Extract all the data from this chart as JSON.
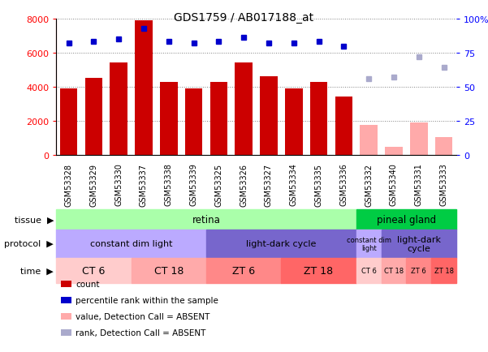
{
  "title": "GDS1759 / AB017188_at",
  "samples": [
    "GSM53328",
    "GSM53329",
    "GSM53330",
    "GSM53337",
    "GSM53338",
    "GSM53339",
    "GSM53325",
    "GSM53326",
    "GSM53327",
    "GSM53334",
    "GSM53335",
    "GSM53336",
    "GSM53332",
    "GSM53340",
    "GSM53331",
    "GSM53333"
  ],
  "counts": [
    3900,
    4500,
    5400,
    7900,
    4300,
    3900,
    4300,
    5400,
    4600,
    3900,
    4300,
    3400,
    1750,
    450,
    1900,
    1050
  ],
  "absent_mask": [
    false,
    false,
    false,
    false,
    false,
    false,
    false,
    false,
    false,
    false,
    false,
    false,
    true,
    true,
    true,
    true
  ],
  "percentile_ranks": [
    82,
    83,
    85,
    93,
    83,
    82,
    83,
    86,
    82,
    82,
    83,
    80,
    56,
    57,
    72,
    64
  ],
  "absent_rank_mask": [
    false,
    false,
    false,
    false,
    false,
    false,
    false,
    false,
    false,
    false,
    false,
    false,
    true,
    true,
    true,
    true
  ],
  "ylim_left": [
    0,
    8000
  ],
  "ylim_right": [
    0,
    100
  ],
  "yticks_left": [
    0,
    2000,
    4000,
    6000,
    8000
  ],
  "yticks_right": [
    0,
    25,
    50,
    75,
    100
  ],
  "bar_color_present": "#cc0000",
  "bar_color_absent": "#ffaaaa",
  "dot_color_present": "#0000cc",
  "dot_color_absent": "#aaaacc",
  "tissue_retina_color": "#aaffaa",
  "tissue_pineal_color": "#00cc44",
  "protocol_const_color": "#bbaaff",
  "protocol_light_color": "#7766cc",
  "tissue_spans": [
    {
      "label": "retina",
      "start": 0,
      "end": 12
    },
    {
      "label": "pineal gland",
      "start": 12,
      "end": 16
    }
  ],
  "protocol_spans": [
    {
      "label": "constant dim light",
      "start": 0,
      "end": 6,
      "color": "#bbaaff"
    },
    {
      "label": "light-dark cycle",
      "start": 6,
      "end": 12,
      "color": "#7766cc"
    },
    {
      "label": "constant dim\nlight",
      "start": 12,
      "end": 13,
      "color": "#bbaaff"
    },
    {
      "label": "light-dark\ncycle",
      "start": 13,
      "end": 16,
      "color": "#7766cc"
    }
  ],
  "time_spans": [
    {
      "label": "CT 6",
      "start": 0,
      "end": 3,
      "color": "#ffcccc"
    },
    {
      "label": "CT 18",
      "start": 3,
      "end": 6,
      "color": "#ffaaaa"
    },
    {
      "label": "ZT 6",
      "start": 6,
      "end": 9,
      "color": "#ff8888"
    },
    {
      "label": "ZT 18",
      "start": 9,
      "end": 12,
      "color": "#ff6666"
    },
    {
      "label": "CT 6",
      "start": 12,
      "end": 13,
      "color": "#ffcccc"
    },
    {
      "label": "CT 18",
      "start": 13,
      "end": 14,
      "color": "#ffaaaa"
    },
    {
      "label": "ZT 6",
      "start": 14,
      "end": 15,
      "color": "#ff8888"
    },
    {
      "label": "ZT 18",
      "start": 15,
      "end": 16,
      "color": "#ff6666"
    }
  ],
  "legend_items": [
    {
      "label": "count",
      "color": "#cc0000"
    },
    {
      "label": "percentile rank within the sample",
      "color": "#0000cc"
    },
    {
      "label": "value, Detection Call = ABSENT",
      "color": "#ffaaaa"
    },
    {
      "label": "rank, Detection Call = ABSENT",
      "color": "#aaaacc"
    }
  ]
}
